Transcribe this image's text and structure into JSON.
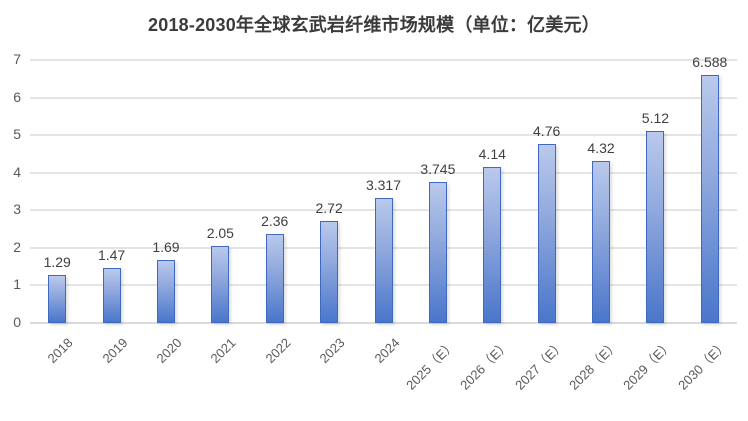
{
  "chart_data": {
    "type": "bar",
    "title": "2018-2030年全球玄武岩纤维市场规模（单位：亿美元）",
    "categories": [
      "2018",
      "2019",
      "2020",
      "2021",
      "2022",
      "2023",
      "2024",
      "2025（E）",
      "2026（E）",
      "2027（E）",
      "2028（E）",
      "2029（E）",
      "2030（E）"
    ],
    "values": [
      1.29,
      1.47,
      1.69,
      2.05,
      2.36,
      2.72,
      3.317,
      3.745,
      4.14,
      4.76,
      4.32,
      5.12,
      6.588
    ],
    "value_labels": [
      "1.29",
      "1.47",
      "1.69",
      "2.05",
      "2.36",
      "2.72",
      "3.317",
      "3.745",
      "4.14",
      "4.76",
      "4.32",
      "5.12",
      "6.588"
    ],
    "xlabel": "",
    "ylabel": "",
    "ylim": [
      0,
      7
    ],
    "yticks": [
      0,
      1,
      2,
      3,
      4,
      5,
      6,
      7
    ],
    "grid": true,
    "legend": false,
    "data_labels": true,
    "x_label_rotation_deg": 45,
    "colors": {
      "bar_gradient_top": "#bac9ec",
      "bar_gradient_bottom": "#4a76cb",
      "bar_border": "#3e69be",
      "gridline": "#e4e4e4",
      "axis_label": "#595959",
      "data_label": "#404040",
      "title": "#3b3b3b",
      "background": "#ffffff"
    }
  }
}
